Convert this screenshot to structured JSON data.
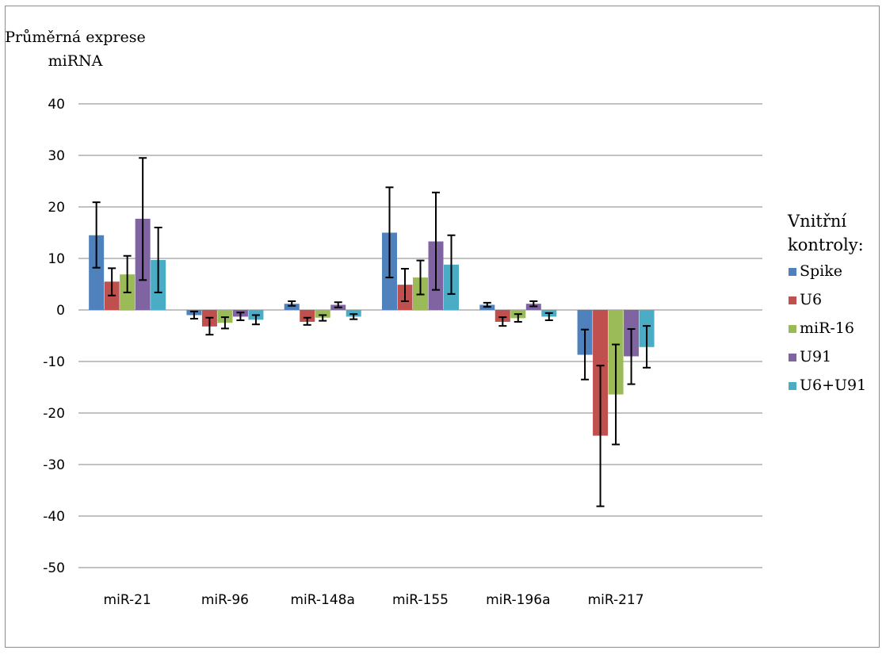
{
  "chart_data": {
    "type": "bar",
    "ylabel_lines": [
      "Průměrná exprese",
      "miRNA"
    ],
    "ylim": [
      -50,
      40
    ],
    "yticks": [
      40,
      30,
      20,
      10,
      0,
      -10,
      -20,
      -30,
      -40,
      -50
    ],
    "grid": true,
    "legend_title_lines": [
      "Vnitřní",
      "kontroly:"
    ],
    "legend_position": "right",
    "categories": [
      "miR-21",
      "miR-96",
      "miR-148a",
      "miR-155",
      "miR-196a",
      "miR-217"
    ],
    "series": [
      {
        "name": "Spike",
        "color": "#4f81bd",
        "values": [
          14.5,
          -1.0,
          1.2,
          15.0,
          1.0,
          -8.7
        ],
        "err_low": [
          8.2,
          -1.7,
          0.8,
          6.3,
          0.6,
          -13.5
        ],
        "err_high": [
          20.9,
          -0.3,
          1.7,
          23.8,
          1.4,
          -3.8
        ]
      },
      {
        "name": "U6",
        "color": "#c0504d",
        "values": [
          5.5,
          -3.2,
          -2.3,
          4.9,
          -2.3,
          -24.4
        ],
        "err_low": [
          2.8,
          -4.8,
          -2.9,
          1.7,
          -3.1,
          -38.1
        ],
        "err_high": [
          8.1,
          -1.5,
          -1.5,
          8.0,
          -1.4,
          -10.8
        ]
      },
      {
        "name": "miR-16",
        "color": "#9bbb59",
        "values": [
          6.9,
          -2.5,
          -1.5,
          6.3,
          -1.6,
          -16.4
        ],
        "err_low": [
          3.4,
          -3.6,
          -2.1,
          3.0,
          -2.3,
          -26.1
        ],
        "err_high": [
          10.5,
          -1.4,
          -1.0,
          9.6,
          -0.8,
          -6.7
        ]
      },
      {
        "name": "U91",
        "color": "#8064a2",
        "values": [
          17.7,
          -1.3,
          1.0,
          13.3,
          1.2,
          -9.0
        ],
        "err_low": [
          5.8,
          -2.0,
          0.5,
          3.9,
          0.7,
          -14.4
        ],
        "err_high": [
          29.5,
          -0.5,
          1.5,
          22.8,
          1.7,
          -3.7
        ]
      },
      {
        "name": "U6+U91",
        "color": "#4bacc6",
        "values": [
          9.7,
          -1.9,
          -1.3,
          8.8,
          -1.3,
          -7.2
        ],
        "err_low": [
          3.4,
          -2.8,
          -1.8,
          3.1,
          -2.0,
          -11.2
        ],
        "err_high": [
          16.0,
          -1.0,
          -0.8,
          14.5,
          -0.6,
          -3.1
        ]
      }
    ]
  }
}
